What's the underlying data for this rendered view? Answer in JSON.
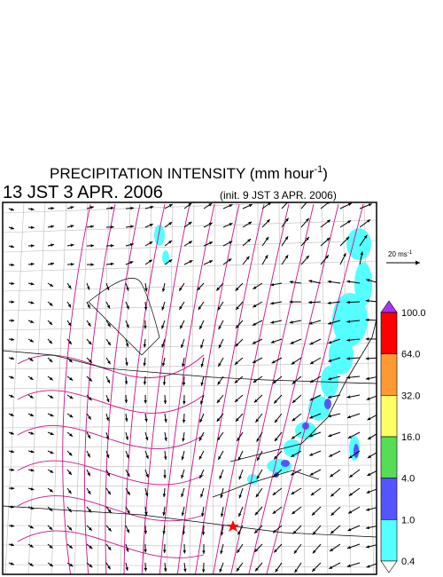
{
  "header": {
    "title": {
      "text": "PRECIPITATION INTENSITY (mm hour",
      "superscript": "-1",
      "closing": ")"
    },
    "valid_time": "13 JST 3 APR. 2006",
    "init_time": "(init. 9 JST 3 APR. 2006)"
  },
  "reference_vector": {
    "text": "20 ms",
    "superscript": "-1"
  },
  "colorbar": {
    "labels": [
      "100.0",
      "64.0",
      "32.0",
      "16.0",
      "4.0",
      "1.0",
      "0.4"
    ],
    "colors": [
      "#ff0000",
      "#ff9933",
      "#ffff66",
      "#55dd55",
      "#5555ff",
      "#55ffff"
    ],
    "over_color": "#aa33ff",
    "under_color": "#ffffff"
  }
}
